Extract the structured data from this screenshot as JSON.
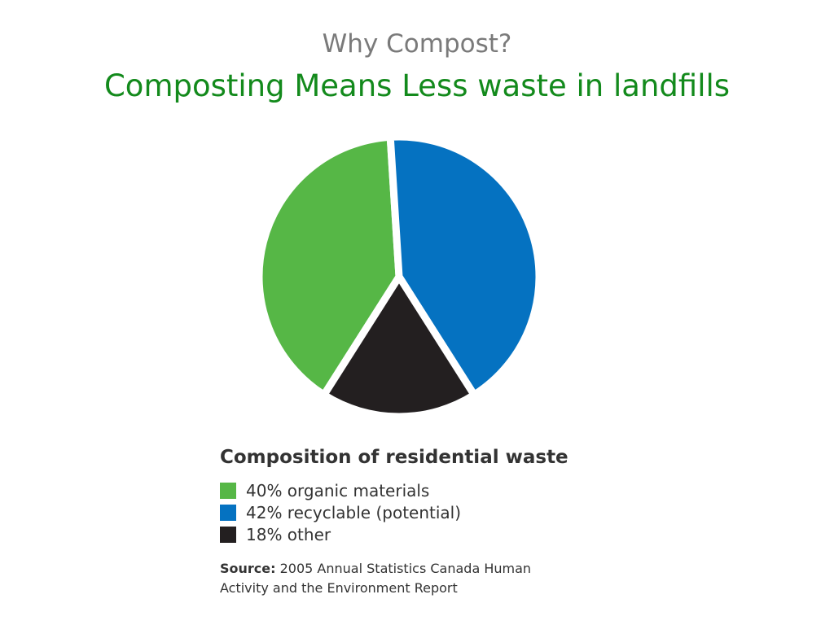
{
  "slide": {
    "kicker": "Why Compost?",
    "title": "Composting Means Less waste in landfills",
    "title_color": "#138a1c"
  },
  "chart_data": {
    "type": "pie",
    "title": "Composition of residential waste",
    "categories": [
      "organic materials",
      "recyclable (potential)",
      "other"
    ],
    "values": [
      40,
      42,
      18
    ],
    "unit": "%",
    "colors": [
      "#56b746",
      "#0572c1",
      "#231f20"
    ],
    "legend_labels": [
      "40% organic materials",
      "42% recyclable (potential)",
      "18% other"
    ],
    "legend_position": "bottom",
    "source_label": "Source:",
    "source_text": "2005 Annual Statistics Canada Human Activity and the Environment Report"
  }
}
